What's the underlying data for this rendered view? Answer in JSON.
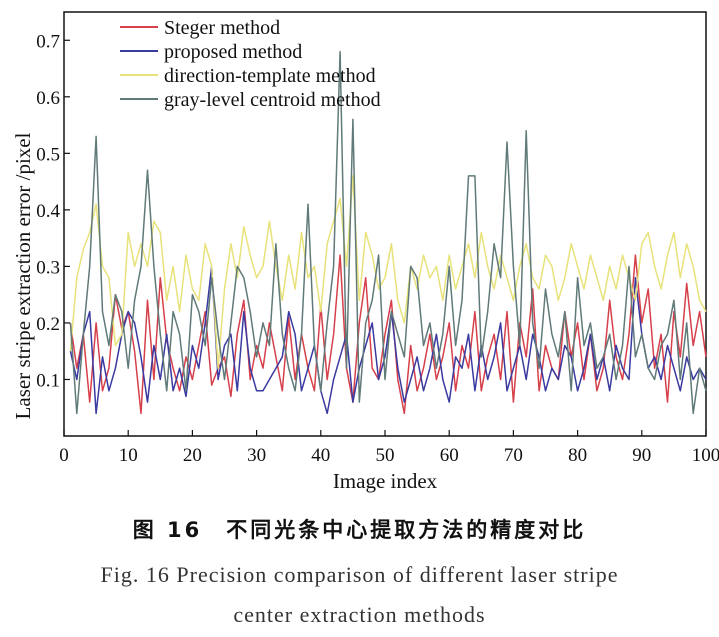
{
  "colors": {
    "steger": "#d6404b",
    "proposed": "#3a3aa0",
    "direction_template": "#e8e27a",
    "gray_level": "#5f7a78",
    "axis": "#111111"
  },
  "caption": {
    "cn": "图 16　不同光条中心提取方法的精度对比",
    "en_line1": "Fig. 16  Precision comparison of different laser stripe",
    "en_line2": "center extraction methods"
  },
  "chart_data": {
    "type": "line",
    "xlabel": "Image index",
    "ylabel": "Laser stripe extraction error /pixel",
    "xlim": [
      0,
      100
    ],
    "ylim": [
      0,
      0.75
    ],
    "xticks": [
      0,
      10,
      20,
      30,
      40,
      50,
      60,
      70,
      80,
      90,
      100
    ],
    "yticks": [
      0.1,
      0.2,
      0.3,
      0.4,
      0.5,
      0.6,
      0.7
    ],
    "grid": false,
    "legend_position": "top-left",
    "x": [
      1,
      2,
      3,
      4,
      5,
      6,
      7,
      8,
      9,
      10,
      11,
      12,
      13,
      14,
      15,
      16,
      17,
      18,
      19,
      20,
      21,
      22,
      23,
      24,
      25,
      26,
      27,
      28,
      29,
      30,
      31,
      32,
      33,
      34,
      35,
      36,
      37,
      38,
      39,
      40,
      41,
      42,
      43,
      44,
      45,
      46,
      47,
      48,
      49,
      50,
      51,
      52,
      53,
      54,
      55,
      56,
      57,
      58,
      59,
      60,
      61,
      62,
      63,
      64,
      65,
      66,
      67,
      68,
      69,
      70,
      71,
      72,
      73,
      74,
      75,
      76,
      77,
      78,
      79,
      80,
      81,
      82,
      83,
      84,
      85,
      86,
      87,
      88,
      89,
      90,
      91,
      92,
      93,
      94,
      95,
      96,
      97,
      98,
      99,
      100
    ],
    "series": [
      {
        "name": "Steger method",
        "color": "#d6404b",
        "values": [
          0.2,
          0.12,
          0.18,
          0.06,
          0.2,
          0.08,
          0.12,
          0.25,
          0.19,
          0.22,
          0.15,
          0.04,
          0.24,
          0.1,
          0.28,
          0.17,
          0.12,
          0.08,
          0.14,
          0.1,
          0.16,
          0.22,
          0.09,
          0.12,
          0.14,
          0.07,
          0.18,
          0.24,
          0.1,
          0.16,
          0.12,
          0.2,
          0.14,
          0.08,
          0.21,
          0.1,
          0.18,
          0.12,
          0.08,
          0.23,
          0.1,
          0.18,
          0.32,
          0.12,
          0.06,
          0.2,
          0.28,
          0.12,
          0.1,
          0.18,
          0.24,
          0.1,
          0.04,
          0.16,
          0.08,
          0.12,
          0.18,
          0.1,
          0.14,
          0.2,
          0.08,
          0.16,
          0.12,
          0.22,
          0.08,
          0.14,
          0.18,
          0.1,
          0.22,
          0.06,
          0.2,
          0.14,
          0.26,
          0.08,
          0.16,
          0.12,
          0.1,
          0.22,
          0.14,
          0.2,
          0.1,
          0.18,
          0.08,
          0.12,
          0.24,
          0.14,
          0.1,
          0.18,
          0.32,
          0.2,
          0.26,
          0.12,
          0.18,
          0.06,
          0.22,
          0.14,
          0.27,
          0.16,
          0.22,
          0.14
        ]
      },
      {
        "name": "proposed method",
        "color": "#3a3aa0",
        "values": [
          0.15,
          0.1,
          0.18,
          0.22,
          0.04,
          0.14,
          0.08,
          0.12,
          0.18,
          0.22,
          0.2,
          0.14,
          0.06,
          0.16,
          0.1,
          0.18,
          0.08,
          0.12,
          0.07,
          0.16,
          0.12,
          0.2,
          0.3,
          0.1,
          0.16,
          0.18,
          0.08,
          0.22,
          0.12,
          0.08,
          0.08,
          0.1,
          0.12,
          0.14,
          0.22,
          0.18,
          0.08,
          0.12,
          0.16,
          0.08,
          0.04,
          0.1,
          0.14,
          0.18,
          0.06,
          0.12,
          0.16,
          0.2,
          0.1,
          0.14,
          0.22,
          0.12,
          0.06,
          0.1,
          0.14,
          0.08,
          0.12,
          0.18,
          0.1,
          0.06,
          0.14,
          0.12,
          0.18,
          0.08,
          0.16,
          0.1,
          0.14,
          0.2,
          0.08,
          0.12,
          0.16,
          0.1,
          0.18,
          0.14,
          0.08,
          0.12,
          0.1,
          0.16,
          0.14,
          0.08,
          0.12,
          0.18,
          0.1,
          0.14,
          0.08,
          0.16,
          0.12,
          0.1,
          0.28,
          0.18,
          0.12,
          0.14,
          0.1,
          0.16,
          0.12,
          0.08,
          0.14,
          0.1,
          0.12,
          0.1
        ]
      },
      {
        "name": "direction-template method",
        "color": "#e8e27a",
        "values": [
          0.15,
          0.28,
          0.33,
          0.36,
          0.41,
          0.3,
          0.28,
          0.16,
          0.18,
          0.36,
          0.3,
          0.34,
          0.3,
          0.38,
          0.36,
          0.24,
          0.3,
          0.22,
          0.32,
          0.26,
          0.24,
          0.34,
          0.3,
          0.12,
          0.26,
          0.34,
          0.28,
          0.37,
          0.32,
          0.28,
          0.3,
          0.38,
          0.3,
          0.24,
          0.32,
          0.26,
          0.36,
          0.28,
          0.3,
          0.22,
          0.34,
          0.38,
          0.42,
          0.3,
          0.46,
          0.24,
          0.36,
          0.32,
          0.26,
          0.28,
          0.34,
          0.24,
          0.2,
          0.3,
          0.26,
          0.32,
          0.28,
          0.3,
          0.24,
          0.32,
          0.26,
          0.3,
          0.34,
          0.28,
          0.36,
          0.3,
          0.26,
          0.32,
          0.28,
          0.24,
          0.3,
          0.34,
          0.28,
          0.26,
          0.32,
          0.3,
          0.24,
          0.28,
          0.34,
          0.3,
          0.26,
          0.32,
          0.28,
          0.24,
          0.3,
          0.26,
          0.32,
          0.28,
          0.24,
          0.34,
          0.36,
          0.3,
          0.26,
          0.32,
          0.36,
          0.28,
          0.34,
          0.3,
          0.24,
          0.22
        ]
      },
      {
        "name": "gray-level centroid method",
        "color": "#5f7a78",
        "values": [
          0.2,
          0.04,
          0.18,
          0.3,
          0.53,
          0.22,
          0.16,
          0.25,
          0.22,
          0.12,
          0.24,
          0.3,
          0.47,
          0.3,
          0.18,
          0.08,
          0.22,
          0.18,
          0.08,
          0.25,
          0.22,
          0.16,
          0.28,
          0.18,
          0.1,
          0.2,
          0.3,
          0.28,
          0.22,
          0.14,
          0.2,
          0.16,
          0.34,
          0.18,
          0.12,
          0.08,
          0.18,
          0.41,
          0.16,
          0.08,
          0.2,
          0.3,
          0.68,
          0.12,
          0.56,
          0.06,
          0.2,
          0.24,
          0.32,
          0.1,
          0.22,
          0.18,
          0.14,
          0.3,
          0.28,
          0.16,
          0.2,
          0.12,
          0.18,
          0.3,
          0.16,
          0.24,
          0.46,
          0.46,
          0.14,
          0.22,
          0.34,
          0.28,
          0.52,
          0.3,
          0.16,
          0.54,
          0.2,
          0.12,
          0.26,
          0.18,
          0.14,
          0.22,
          0.08,
          0.28,
          0.16,
          0.2,
          0.12,
          0.14,
          0.18,
          0.1,
          0.16,
          0.3,
          0.14,
          0.18,
          0.12,
          0.1,
          0.16,
          0.18,
          0.24,
          0.1,
          0.2,
          0.04,
          0.12,
          0.08
        ]
      }
    ]
  }
}
